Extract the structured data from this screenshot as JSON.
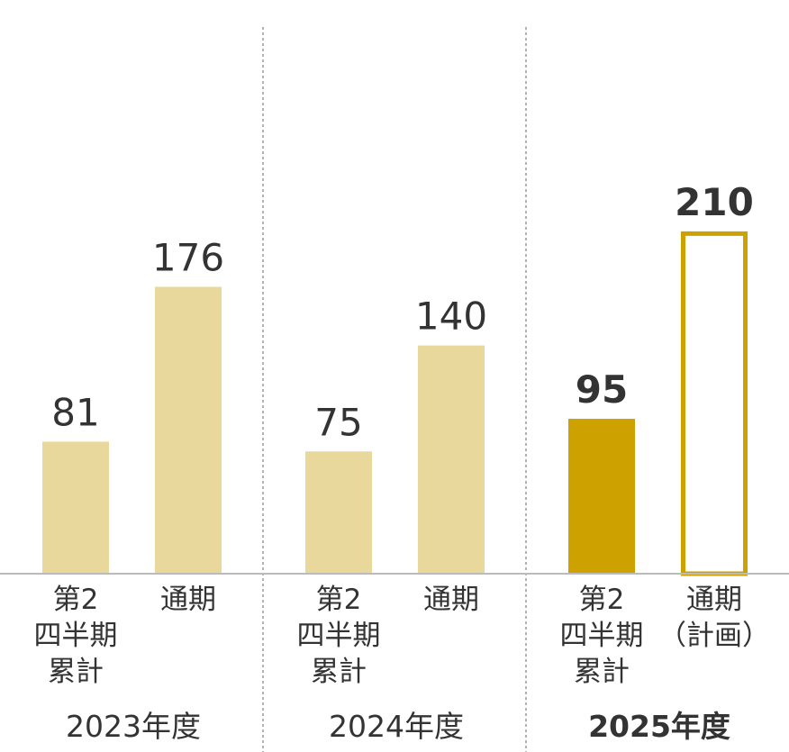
{
  "chart_data": {
    "type": "bar",
    "title": "",
    "xlabel": "",
    "ylabel": "",
    "ylim": [
      0,
      240
    ],
    "grid": false,
    "legend": "none",
    "colors": {
      "past_fill": "#E9D89C",
      "current_fill": "#CCA100",
      "plan_stroke": "#CCA100",
      "baseline": "#BBBBBB",
      "divider": "#666666",
      "text": "#333333"
    },
    "groups": [
      {
        "label": "2023年度",
        "emphasis": false,
        "bars": [
          {
            "label_lines": [
              "第2",
              "四半期",
              "累計"
            ],
            "value": 81,
            "style": "past"
          },
          {
            "label_lines": [
              "通期"
            ],
            "value": 176,
            "style": "past"
          }
        ]
      },
      {
        "label": "2024年度",
        "emphasis": false,
        "bars": [
          {
            "label_lines": [
              "第2",
              "四半期",
              "累計"
            ],
            "value": 75,
            "style": "past"
          },
          {
            "label_lines": [
              "通期"
            ],
            "value": 140,
            "style": "past"
          }
        ]
      },
      {
        "label": "2025年度",
        "emphasis": true,
        "bars": [
          {
            "label_lines": [
              "第2",
              "四半期",
              "累計"
            ],
            "value": 95,
            "style": "current"
          },
          {
            "label_lines": [
              "通期",
              "（計画）"
            ],
            "value": 210,
            "style": "plan"
          }
        ]
      }
    ]
  }
}
